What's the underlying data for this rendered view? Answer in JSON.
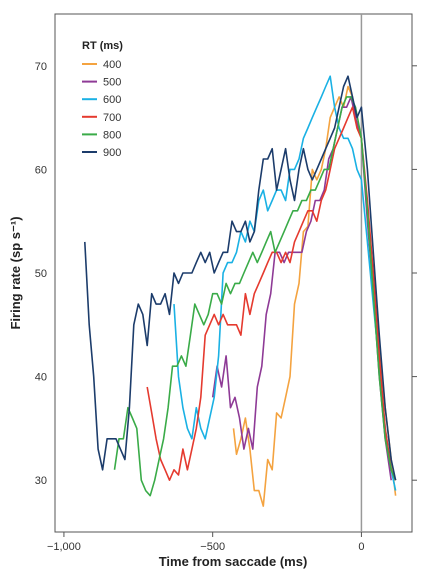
{
  "chart_data": {
    "type": "line",
    "xlabel": "Time from saccade (ms)",
    "ylabel": "Firing rate (sp s⁻¹)",
    "xlim": [
      -1030,
      170
    ],
    "ylim": [
      25,
      75
    ],
    "x_ticks": [
      -1000,
      -500,
      0
    ],
    "x_tick_labels": [
      "−1,000",
      "−500",
      "0"
    ],
    "y_ticks": [
      30,
      40,
      50,
      60,
      70
    ],
    "y_tick_labels": [
      "30",
      "40",
      "50",
      "60",
      "70"
    ],
    "reference_line_x": 0,
    "legend_title": "RT (ms)",
    "legend_position": "top-left",
    "series": [
      {
        "name": "400",
        "color": "#f4a340",
        "x": [
          -430,
          -420,
          -405,
          -390,
          -375,
          -360,
          -345,
          -330,
          -315,
          -300,
          -285,
          -270,
          -255,
          -240,
          -225,
          -210,
          -195,
          -180,
          -165,
          -150,
          -135,
          -120,
          -105,
          -90,
          -75,
          -60,
          -45,
          -30,
          -15,
          0,
          20,
          40,
          60,
          80,
          100,
          115
        ],
        "y": [
          35,
          32.5,
          34,
          36,
          33,
          29,
          29,
          27.5,
          32,
          31,
          36.5,
          36,
          38,
          40,
          47,
          49,
          54,
          54.5,
          60,
          59,
          60,
          62,
          65,
          66,
          67,
          66,
          68,
          67,
          64,
          63,
          56,
          50,
          43,
          37,
          32,
          28.5
        ]
      },
      {
        "name": "500",
        "color": "#8e3a96",
        "x": [
          -500,
          -485,
          -470,
          -455,
          -440,
          -425,
          -410,
          -395,
          -380,
          -365,
          -350,
          -335,
          -320,
          -305,
          -290,
          -275,
          -260,
          -245,
          -230,
          -215,
          -200,
          -185,
          -170,
          -155,
          -140,
          -125,
          -110,
          -95,
          -80,
          -65,
          -50,
          -35,
          -20,
          0,
          20,
          40,
          60,
          80,
          100
        ],
        "y": [
          38,
          41,
          39,
          42,
          37,
          38,
          36,
          33,
          35,
          33,
          39,
          41,
          46,
          48,
          52,
          52,
          51,
          52,
          52,
          52,
          52,
          54,
          55,
          57,
          57,
          58,
          61,
          62,
          64,
          66,
          66,
          67,
          65,
          63,
          55,
          48,
          40,
          34,
          30
        ]
      },
      {
        "name": "600",
        "color": "#1ab1e4",
        "x": [
          -630,
          -615,
          -600,
          -585,
          -570,
          -555,
          -540,
          -525,
          -510,
          -495,
          -480,
          -465,
          -450,
          -435,
          -420,
          -405,
          -390,
          -375,
          -360,
          -345,
          -330,
          -315,
          -300,
          -285,
          -270,
          -255,
          -240,
          -225,
          -210,
          -195,
          -180,
          -165,
          -150,
          -135,
          -120,
          -105,
          -90,
          -75,
          -60,
          -45,
          -30,
          -15,
          0,
          20,
          40,
          60,
          80,
          100,
          115
        ],
        "y": [
          47,
          40,
          37,
          35,
          34,
          37,
          35,
          34,
          36,
          38,
          42,
          50,
          51,
          51,
          52,
          54,
          53,
          55,
          54,
          57,
          58,
          56,
          57,
          58,
          58,
          57,
          60,
          60,
          61,
          63,
          64,
          65,
          66,
          67,
          68,
          69,
          66,
          64,
          63,
          63,
          62,
          60,
          59,
          53,
          47,
          41,
          35,
          31,
          29
        ]
      },
      {
        "name": "700",
        "color": "#e53a2f",
        "x": [
          -720,
          -705,
          -690,
          -675,
          -660,
          -645,
          -630,
          -615,
          -600,
          -585,
          -570,
          -555,
          -540,
          -525,
          -510,
          -495,
          -480,
          -465,
          -450,
          -435,
          -420,
          -405,
          -390,
          -375,
          -360,
          -345,
          -330,
          -315,
          -300,
          -285,
          -270,
          -255,
          -240,
          -225,
          -210,
          -195,
          -180,
          -165,
          -150,
          -135,
          -120,
          -105,
          -90,
          -75,
          -60,
          -45,
          -30,
          -15,
          0,
          20,
          40,
          60,
          80,
          100,
          115
        ],
        "y": [
          39,
          36.5,
          34,
          32,
          31,
          30,
          31,
          30.5,
          33,
          31,
          33,
          35,
          38,
          44,
          45,
          46,
          45,
          46,
          45,
          45,
          45,
          44,
          48,
          46,
          48,
          49,
          50,
          51,
          52,
          52,
          51,
          52,
          51,
          53,
          54,
          55,
          56,
          56,
          55,
          57,
          58,
          60,
          62,
          63,
          64,
          65,
          66,
          64,
          63,
          57,
          50,
          42,
          35,
          31,
          30
        ]
      },
      {
        "name": "800",
        "color": "#3aab48",
        "x": [
          -830,
          -815,
          -800,
          -785,
          -770,
          -755,
          -740,
          -725,
          -710,
          -695,
          -680,
          -665,
          -650,
          -635,
          -620,
          -605,
          -590,
          -575,
          -560,
          -545,
          -530,
          -515,
          -500,
          -485,
          -470,
          -455,
          -440,
          -425,
          -410,
          -395,
          -380,
          -365,
          -350,
          -335,
          -320,
          -305,
          -290,
          -275,
          -260,
          -245,
          -230,
          -215,
          -200,
          -185,
          -170,
          -155,
          -140,
          -125,
          -110,
          -95,
          -80,
          -65,
          -50,
          -35,
          -20,
          0,
          20,
          40,
          60,
          80,
          100,
          115
        ],
        "y": [
          31,
          34,
          34,
          37,
          36,
          35,
          30,
          29,
          28.5,
          30,
          32,
          34,
          37,
          41,
          41,
          42,
          41,
          44,
          47,
          46,
          45,
          46,
          48,
          48,
          47,
          49,
          48,
          49,
          49,
          50,
          51,
          52,
          51,
          52,
          53,
          54,
          52,
          53,
          54,
          55,
          56,
          56,
          57,
          57,
          58,
          58,
          59,
          60,
          60,
          62,
          64,
          66,
          67,
          67,
          66,
          63,
          56,
          48,
          40,
          34,
          31,
          30
        ]
      },
      {
        "name": "900",
        "color": "#1c3c6b",
        "x": [
          -930,
          -915,
          -900,
          -885,
          -870,
          -855,
          -840,
          -825,
          -810,
          -795,
          -780,
          -765,
          -750,
          -735,
          -720,
          -705,
          -690,
          -675,
          -660,
          -645,
          -630,
          -615,
          -600,
          -585,
          -570,
          -555,
          -540,
          -525,
          -510,
          -495,
          -480,
          -465,
          -450,
          -435,
          -420,
          -405,
          -390,
          -375,
          -360,
          -345,
          -330,
          -315,
          -300,
          -285,
          -270,
          -255,
          -240,
          -225,
          -210,
          -195,
          -180,
          -165,
          -150,
          -135,
          -120,
          -105,
          -90,
          -75,
          -60,
          -45,
          -30,
          -15,
          0,
          20,
          40,
          60,
          80,
          100,
          115
        ],
        "y": [
          53,
          45,
          40,
          33,
          31,
          34,
          34,
          34,
          33,
          32,
          37,
          45,
          47,
          46,
          43,
          48,
          47,
          47,
          48,
          46,
          50,
          49,
          50,
          50,
          50,
          51,
          52,
          51,
          52,
          50,
          51,
          52,
          52,
          55,
          54,
          54,
          55,
          53,
          54,
          58,
          61,
          61,
          62,
          58,
          60,
          62,
          59,
          57,
          60,
          62,
          60,
          59,
          60,
          61,
          62,
          63,
          64,
          66,
          68,
          69,
          67,
          65,
          66,
          60,
          52,
          44,
          37,
          32,
          30
        ]
      }
    ]
  }
}
